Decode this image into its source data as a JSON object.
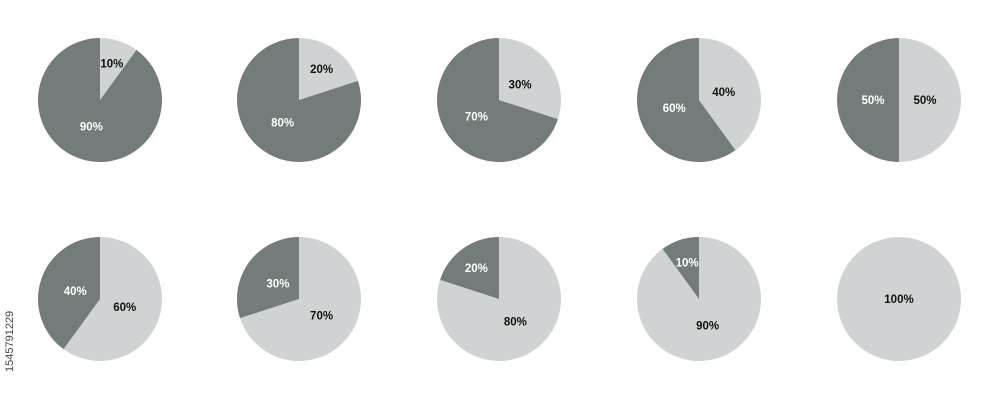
{
  "colors": {
    "dark": "#737b7b",
    "light": "#d0d3d3",
    "dark_label": "#ffffff",
    "light_label": "#111111",
    "background": "#ffffff"
  },
  "side_text": "1545791229",
  "chart_data": [
    {
      "type": "pie",
      "slices": [
        {
          "label": "10%",
          "value": 10,
          "shade": "light"
        },
        {
          "label": "90%",
          "value": 90,
          "shade": "dark"
        }
      ]
    },
    {
      "type": "pie",
      "slices": [
        {
          "label": "20%",
          "value": 20,
          "shade": "light"
        },
        {
          "label": "80%",
          "value": 80,
          "shade": "dark"
        }
      ]
    },
    {
      "type": "pie",
      "slices": [
        {
          "label": "30%",
          "value": 30,
          "shade": "light"
        },
        {
          "label": "70%",
          "value": 70,
          "shade": "dark"
        }
      ]
    },
    {
      "type": "pie",
      "slices": [
        {
          "label": "40%",
          "value": 40,
          "shade": "light"
        },
        {
          "label": "60%",
          "value": 60,
          "shade": "dark"
        }
      ]
    },
    {
      "type": "pie",
      "slices": [
        {
          "label": "50%",
          "value": 50,
          "shade": "light"
        },
        {
          "label": "50%",
          "value": 50,
          "shade": "dark"
        }
      ]
    },
    {
      "type": "pie",
      "slices": [
        {
          "label": "60%",
          "value": 60,
          "shade": "light"
        },
        {
          "label": "40%",
          "value": 40,
          "shade": "dark"
        }
      ]
    },
    {
      "type": "pie",
      "slices": [
        {
          "label": "70%",
          "value": 70,
          "shade": "light"
        },
        {
          "label": "30%",
          "value": 30,
          "shade": "dark"
        }
      ]
    },
    {
      "type": "pie",
      "slices": [
        {
          "label": "80%",
          "value": 80,
          "shade": "light"
        },
        {
          "label": "20%",
          "value": 20,
          "shade": "dark"
        }
      ]
    },
    {
      "type": "pie",
      "slices": [
        {
          "label": "90%",
          "value": 90,
          "shade": "light"
        },
        {
          "label": "10%",
          "value": 10,
          "shade": "dark"
        }
      ]
    },
    {
      "type": "pie",
      "slices": [
        {
          "label": "100%",
          "value": 100,
          "shade": "light"
        }
      ]
    }
  ]
}
